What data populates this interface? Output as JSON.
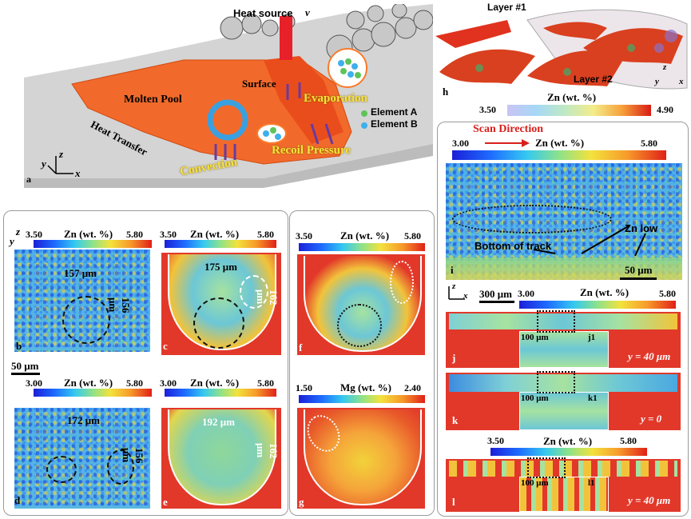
{
  "panel_a": {
    "label": "a",
    "heat_source": "Heat source",
    "velocity": "v",
    "molten_pool": "Molten Pool",
    "heat_transfer": "Heat Transfer",
    "surface": "Surface",
    "evaporation": "Evaporation",
    "element_a": "Element A",
    "element_b": "Element B",
    "convection": "Convection",
    "recoil_pressure": "Recoil Pressure",
    "axis_y": "y",
    "axis_z": "z",
    "axis_x": "x"
  },
  "panel_h": {
    "label": "h",
    "layer1": "Layer #1",
    "layer2": "Layer #2",
    "colorbar_title": "Zn (wt. %)",
    "colorbar_min": "3.50",
    "colorbar_max": "4.90",
    "axis_z": "z",
    "axis_y": "y",
    "axis_x": "x"
  },
  "panel_b": {
    "label": "b",
    "cb_title": "Zn (wt. %)",
    "cb_min": "3.50",
    "cb_max": "5.80",
    "width": "157 μm",
    "depth": "156 μm",
    "axis_z": "z",
    "axis_y": "y"
  },
  "panel_c": {
    "label": "c",
    "cb_title": "Zn (wt. %)",
    "cb_min": "3.50",
    "cb_max": "5.80",
    "width": "175 μm",
    "depth": "162 μm"
  },
  "panel_d": {
    "label": "d",
    "cb_title": "Zn (wt. %)",
    "cb_min": "3.00",
    "cb_max": "5.80",
    "width": "172 μm",
    "depth": "156 μm",
    "scale": "50 μm"
  },
  "panel_e": {
    "label": "e",
    "cb_title": "Zn (wt. %)",
    "cb_min": "3.00",
    "cb_max": "5.80",
    "width": "192 μm",
    "depth": "162 μm"
  },
  "panel_f": {
    "label": "f",
    "cb_title": "Zn (wt. %)",
    "cb_min": "3.50",
    "cb_max": "5.80"
  },
  "panel_g": {
    "label": "g",
    "cb_title": "Mg (wt. %)",
    "cb_min": "1.50",
    "cb_max": "2.40"
  },
  "panel_i": {
    "label": "i",
    "scan_direction": "Scan Direction",
    "cb_title": "Zn (wt. %)",
    "cb_min": "3.00",
    "cb_max": "5.80",
    "zn_low": "Zn low",
    "bottom_of_track": "Bottom of track",
    "scale": "50 μm"
  },
  "panel_jkl": {
    "axis_z": "z",
    "axis_x": "x",
    "scale": "300 μm",
    "cb1_title": "Zn (wt. %)",
    "cb1_min": "3.00",
    "cb1_max": "5.80",
    "cb2_title": "Zn (wt. %)",
    "cb2_min": "3.50",
    "cb2_max": "5.80",
    "j_label": "j",
    "j1_label": "j1",
    "j_pos": "y = 40 μm",
    "j_scale": "100 μm",
    "k_label": "k",
    "k1_label": "k1",
    "k_pos": "y = 0",
    "k_scale": "100 μm",
    "l_label": "l",
    "l1_label": "l1",
    "l_pos": "y = 40 μm",
    "l_scale": "100 μm"
  }
}
